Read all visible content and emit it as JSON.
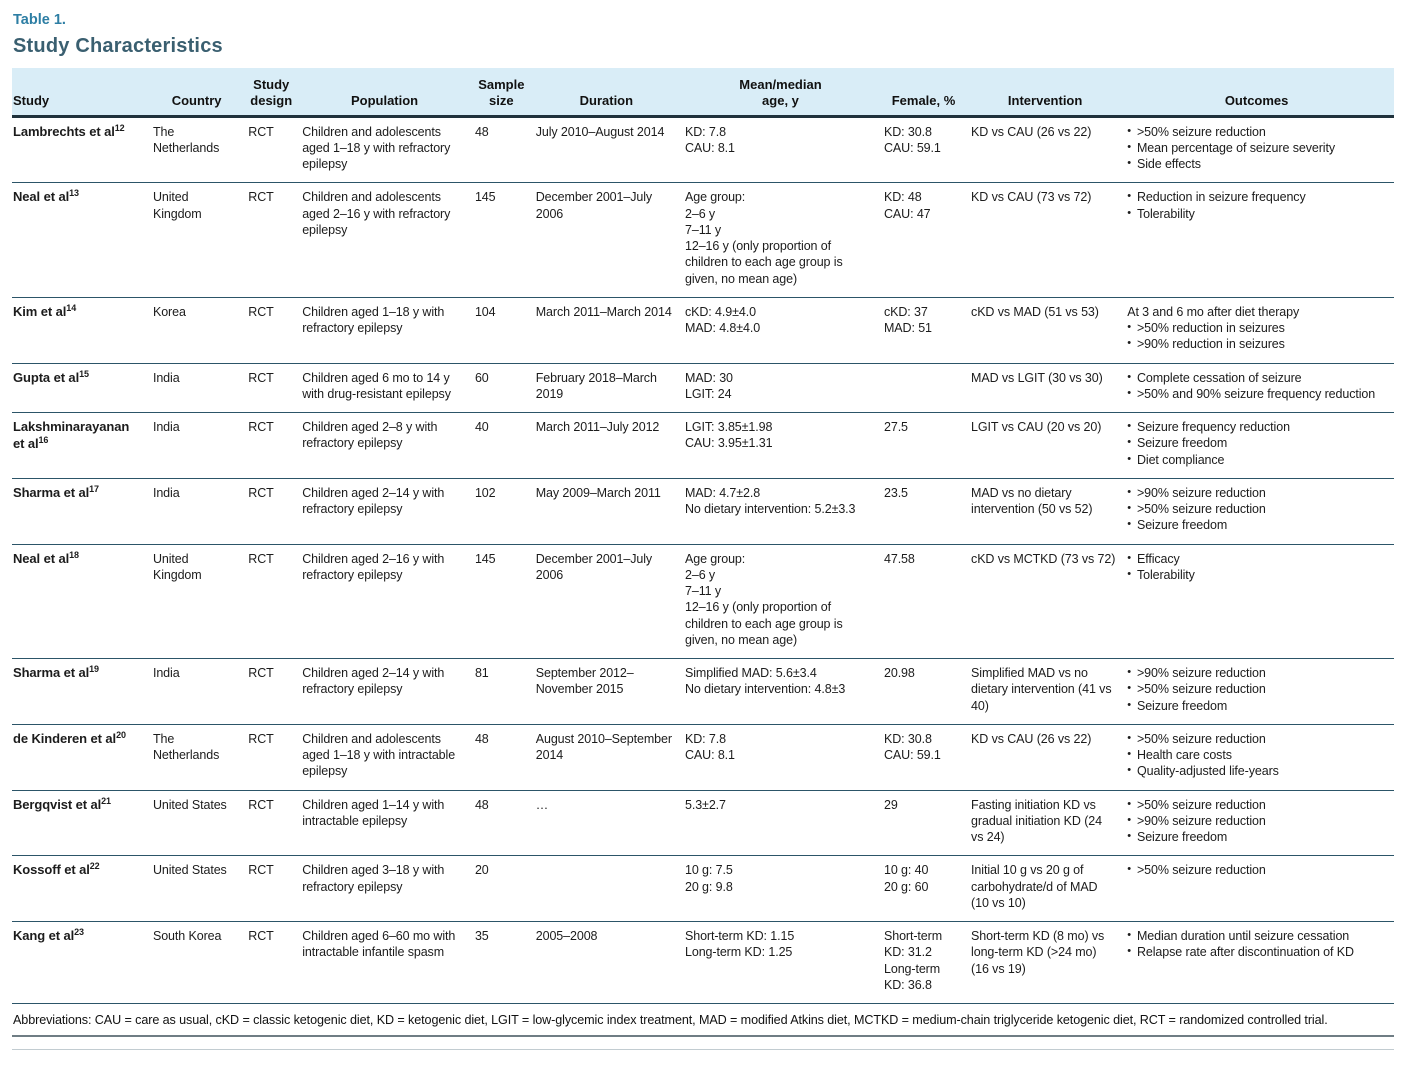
{
  "page": {
    "label": "Table 1.",
    "title": "Study Characteristics"
  },
  "colors": {
    "label_teal": "#2d7ea4",
    "title_slate": "#3a5f70",
    "header_background": "#d9edf7",
    "row_border": "#2c5568"
  },
  "table": {
    "columns": [
      "Study",
      "Country",
      "Study\ndesign",
      "Population",
      "Sample\nsize",
      "Duration",
      "Mean/median\nage, y",
      "Female, %",
      "Intervention",
      "Outcomes"
    ],
    "rows": [
      {
        "study": "Lambrechts et al",
        "ref": "12",
        "country": "The Netherlands",
        "design": "RCT",
        "population": "Children and adolescents aged 1–18 y with refractory epilepsy",
        "sample_size": "48",
        "duration": "July 2010–August 2014",
        "age": [
          "KD: 7.8",
          "CAU: 8.1"
        ],
        "female": [
          "KD: 30.8",
          "CAU: 59.1"
        ],
        "intervention": "KD vs CAU (26 vs 22)",
        "outcomes_intro": "",
        "outcomes": [
          ">50% seizure reduction",
          "Mean percentage of seizure severity",
          "Side effects"
        ]
      },
      {
        "study": "Neal et al",
        "ref": "13",
        "country": "United Kingdom",
        "design": "RCT",
        "population": "Children and adolescents aged 2–16 y with refractory epilepsy",
        "sample_size": "145",
        "duration": "December 2001–July 2006",
        "age": [
          "Age group:",
          "2–6 y",
          "7–11 y",
          "12–16 y (only proportion of children to each age group is given, no mean age)"
        ],
        "female": [
          "KD: 48",
          "CAU: 47"
        ],
        "intervention": "KD vs CAU (73 vs 72)",
        "outcomes_intro": "",
        "outcomes": [
          "Reduction in seizure frequency",
          "Tolerability"
        ]
      },
      {
        "study": "Kim et al",
        "ref": "14",
        "country": "Korea",
        "design": "RCT",
        "population": "Children aged 1–18 y with refractory epilepsy",
        "sample_size": "104",
        "duration": "March 2011–March 2014",
        "age": [
          "cKD: 4.9±4.0",
          "MAD: 4.8±4.0"
        ],
        "female": [
          "cKD: 37",
          "MAD: 51"
        ],
        "intervention": "cKD vs MAD (51 vs 53)",
        "outcomes_intro": "At 3 and 6 mo after diet therapy",
        "outcomes": [
          ">50% reduction in seizures",
          ">90% reduction in seizures"
        ]
      },
      {
        "study": "Gupta et al",
        "ref": "15",
        "country": "India",
        "design": "RCT",
        "population": "Children aged 6 mo to 14 y with drug-resistant epilepsy",
        "sample_size": "60",
        "duration": "February 2018–March 2019",
        "age": [
          "MAD: 30",
          "LGIT: 24"
        ],
        "female": [],
        "intervention": "MAD vs LGIT (30 vs 30)",
        "outcomes_intro": "",
        "outcomes": [
          "Complete cessation of seizure",
          ">50% and 90% seizure frequency reduction"
        ]
      },
      {
        "study": "Lakshminarayanan et al",
        "ref": "16",
        "country": "India",
        "design": "RCT",
        "population": "Children aged 2–8 y with refractory epilepsy",
        "sample_size": "40",
        "duration": "March 2011–July 2012",
        "age": [
          "LGIT: 3.85±1.98",
          "CAU: 3.95±1.31"
        ],
        "female": [
          "27.5"
        ],
        "intervention": "LGIT vs CAU (20 vs 20)",
        "outcomes_intro": "",
        "outcomes": [
          "Seizure frequency reduction",
          "Seizure freedom",
          "Diet compliance"
        ]
      },
      {
        "study": "Sharma et al",
        "ref": "17",
        "country": "India",
        "design": "RCT",
        "population": "Children aged 2–14 y with refractory epilepsy",
        "sample_size": "102",
        "duration": "May 2009–March 2011",
        "age": [
          "MAD: 4.7±2.8",
          "No dietary intervention: 5.2±3.3"
        ],
        "female": [
          "23.5"
        ],
        "intervention": "MAD vs no dietary intervention (50 vs 52)",
        "outcomes_intro": "",
        "outcomes": [
          ">90% seizure reduction",
          ">50% seizure reduction",
          "Seizure freedom"
        ]
      },
      {
        "study": "Neal et al",
        "ref": "18",
        "country": "United Kingdom",
        "design": "RCT",
        "population": "Children aged 2–16 y with refractory epilepsy",
        "sample_size": "145",
        "duration": "December 2001–July 2006",
        "age": [
          "Age group:",
          "2–6 y",
          "7–11 y",
          "12–16 y (only proportion of children to each age group is given, no mean age)"
        ],
        "female": [
          "47.58"
        ],
        "intervention": "cKD vs MCTKD (73 vs 72)",
        "outcomes_intro": "",
        "outcomes": [
          "Efficacy",
          "Tolerability"
        ]
      },
      {
        "study": "Sharma et al",
        "ref": "19",
        "country": "India",
        "design": "RCT",
        "population": "Children aged 2–14 y with refractory epilepsy",
        "sample_size": "81",
        "duration": "September 2012–November 2015",
        "age": [
          "Simplified MAD: 5.6±3.4",
          "No dietary intervention: 4.8±3"
        ],
        "female": [
          "20.98"
        ],
        "intervention": "Simplified MAD vs no dietary intervention (41 vs 40)",
        "outcomes_intro": "",
        "outcomes": [
          ">90% seizure reduction",
          ">50% seizure reduction",
          "Seizure freedom"
        ]
      },
      {
        "study": "de Kinderen et al",
        "ref": "20",
        "country": "The Netherlands",
        "design": "RCT",
        "population": "Children and adolescents aged 1–18 y with intractable epilepsy",
        "sample_size": "48",
        "duration": "August 2010–September 2014",
        "age": [
          "KD: 7.8",
          "CAU: 8.1"
        ],
        "female": [
          "KD: 30.8",
          "CAU: 59.1"
        ],
        "intervention": "KD vs CAU (26 vs 22)",
        "outcomes_intro": "",
        "outcomes": [
          ">50% seizure reduction",
          "Health care costs",
          "Quality-adjusted life-years"
        ]
      },
      {
        "study": "Bergqvist et al",
        "ref": "21",
        "country": "United States",
        "design": "RCT",
        "population": "Children aged 1–14 y with intractable epilepsy",
        "sample_size": "48",
        "duration": "…",
        "age": [
          "5.3±2.7"
        ],
        "female": [
          "29"
        ],
        "intervention": "Fasting initiation KD vs gradual initiation KD (24 vs 24)",
        "outcomes_intro": "",
        "outcomes": [
          ">50% seizure reduction",
          ">90% seizure reduction",
          "Seizure freedom"
        ]
      },
      {
        "study": "Kossoff et al",
        "ref": "22",
        "country": "United States",
        "design": "RCT",
        "population": "Children aged 3–18 y with refractory epilepsy",
        "sample_size": "20",
        "duration": "",
        "age": [
          "10 g: 7.5",
          "20 g: 9.8"
        ],
        "female": [
          "10 g: 40",
          "20 g: 60"
        ],
        "intervention": "Initial 10 g vs 20 g of carbohydrate/d of MAD (10 vs 10)",
        "outcomes_intro": "",
        "outcomes": [
          ">50% seizure reduction"
        ]
      },
      {
        "study": "Kang et al",
        "ref": "23",
        "country": "South Korea",
        "design": "RCT",
        "population": "Children aged 6–60 mo with intractable infantile spasm",
        "sample_size": "35",
        "duration": "2005–2008",
        "age": [
          "Short-term KD: 1.15",
          "Long-term KD: 1.25"
        ],
        "female": [
          "Short-term KD: 31.2",
          "Long-term KD: 36.8"
        ],
        "intervention": "Short-term KD (8 mo) vs long-term KD (>24 mo) (16 vs 19)",
        "outcomes_intro": "",
        "outcomes": [
          "Median duration until seizure cessation",
          "Relapse rate after discontinuation of KD"
        ]
      }
    ],
    "footnote": "Abbreviations: CAU = care as usual, cKD = classic ketogenic diet, KD = ketogenic diet, LGIT = low-glycemic index treatment, MAD = modified Atkins diet, MCTKD = medium-chain triglyceride ketogenic diet, RCT = randomized controlled trial."
  }
}
